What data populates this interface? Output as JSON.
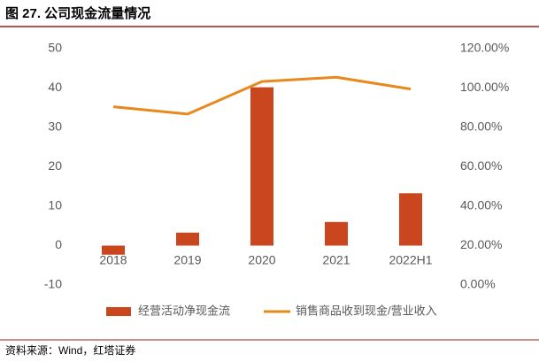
{
  "chart_data": {
    "type": "bar-line",
    "title": "图 27. 公司现金流量情况",
    "source": "资料来源：Wind，红塔证券",
    "categories": [
      "2018",
      "2019",
      "2020",
      "2021",
      "2022H1"
    ],
    "series": [
      {
        "name": "经营活动净现金流",
        "type": "bar",
        "color": "#c9461f",
        "values": [
          -2.3,
          3.3,
          40.2,
          6.0,
          13.3
        ]
      },
      {
        "name": "销售商品收到现金/营业收入",
        "type": "line",
        "axis": "y2",
        "color": "#e8891e",
        "values": [
          90.5,
          86.8,
          103.3,
          105.5,
          99.5
        ]
      }
    ],
    "ylim": [
      -10,
      50
    ],
    "yticks": [
      -10,
      0,
      10,
      20,
      30,
      40,
      50
    ],
    "y2lim": [
      0,
      120
    ],
    "y2ticks": [
      {
        "value": 0,
        "label": "0.00%"
      },
      {
        "value": 20,
        "label": "20.00%"
      },
      {
        "value": 40,
        "label": "40.00%"
      },
      {
        "value": 60,
        "label": "60.00%"
      },
      {
        "value": 80,
        "label": "80.00%"
      },
      {
        "value": 100,
        "label": "100.00%"
      },
      {
        "value": 120,
        "label": "120.00%"
      }
    ],
    "grid": false
  }
}
